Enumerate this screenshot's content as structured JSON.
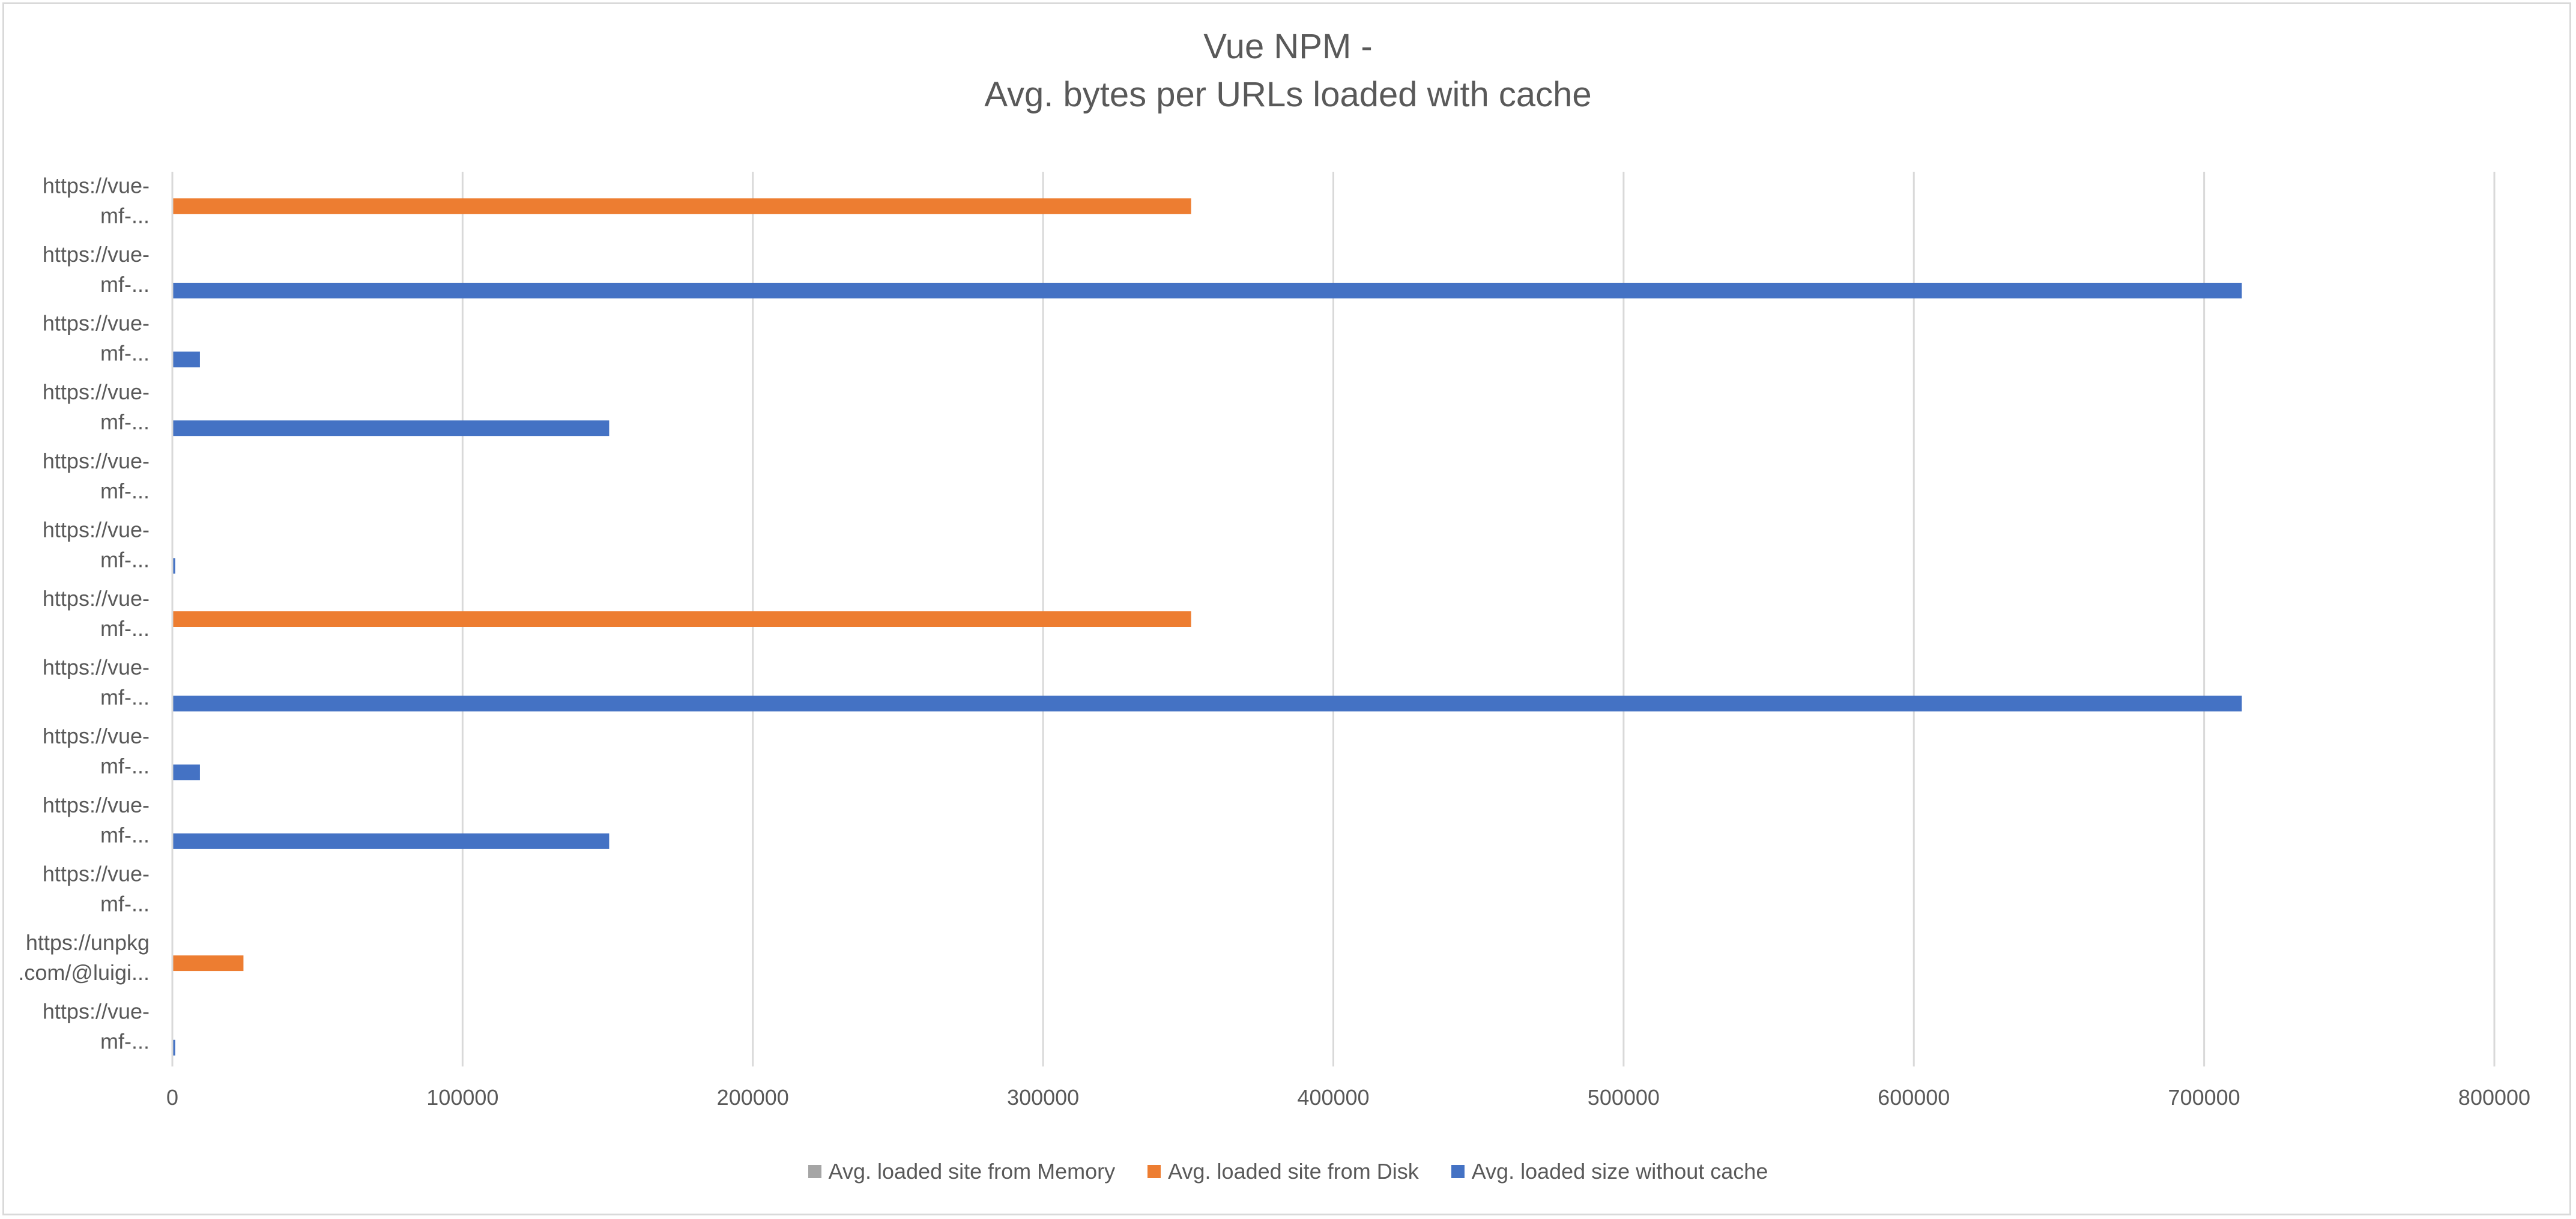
{
  "chart_data": {
    "type": "bar",
    "orientation": "horizontal",
    "title": [
      "Vue NPM -",
      "Avg. bytes per URLs loaded with cache"
    ],
    "categories": [
      [
        "https://vue-",
        "mf-..."
      ],
      [
        "https://vue-",
        "mf-..."
      ],
      [
        "https://vue-",
        "mf-..."
      ],
      [
        "https://vue-",
        "mf-..."
      ],
      [
        "https://vue-",
        "mf-..."
      ],
      [
        "https://vue-",
        "mf-..."
      ],
      [
        "https://vue-",
        "mf-..."
      ],
      [
        "https://vue-",
        "mf-..."
      ],
      [
        "https://vue-",
        "mf-..."
      ],
      [
        "https://vue-",
        "mf-..."
      ],
      [
        "https://vue-",
        "mf-..."
      ],
      [
        "https://unpkg",
        ".com/@luigi..."
      ],
      [
        "https://vue-",
        "mf-..."
      ]
    ],
    "series": [
      {
        "name": "Avg. loaded site from Memory",
        "color": "#a5a5a5",
        "values": [
          0,
          0,
          0,
          0,
          0,
          0,
          0,
          0,
          0,
          0,
          0,
          0,
          0
        ]
      },
      {
        "name": "Avg. loaded site from Disk",
        "color": "#ed7d31",
        "values": [
          351000,
          0,
          0,
          0,
          0,
          0,
          351000,
          0,
          0,
          0,
          0,
          24500,
          0
        ]
      },
      {
        "name": "Avg. loaded size without cache",
        "color": "#4472c4",
        "values": [
          0,
          713000,
          9500,
          150500,
          0,
          1000,
          0,
          713000,
          9500,
          150500,
          0,
          0,
          1000
        ]
      }
    ],
    "xlim": [
      0,
      800000
    ],
    "xticks": [
      0,
      100000,
      200000,
      300000,
      400000,
      500000,
      600000,
      700000,
      800000
    ],
    "xtick_labels": [
      "0",
      "100000",
      "200000",
      "300000",
      "400000",
      "500000",
      "600000",
      "700000",
      "800000"
    ],
    "grid": true,
    "legend": "bottom"
  }
}
